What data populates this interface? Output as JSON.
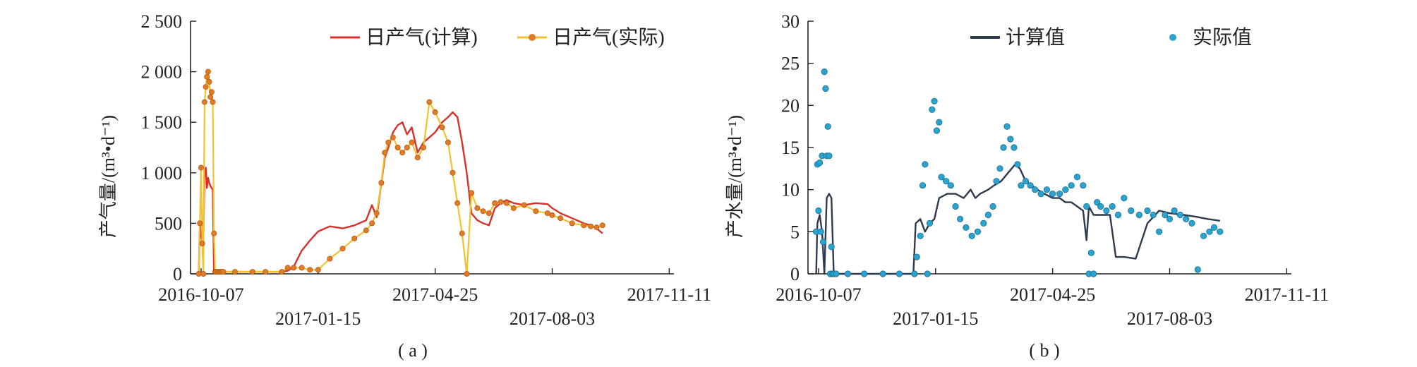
{
  "chart_data": [
    {
      "type": "line",
      "panel_label": "( a )",
      "ylabel": "产气量/(m³•d⁻¹)",
      "xlabel": "",
      "ylim": [
        0,
        2500
      ],
      "yticks": [
        0,
        500,
        1000,
        1500,
        2000,
        2500
      ],
      "ytick_labels": [
        "0",
        "500",
        "1 000",
        "1 500",
        "2 000",
        "2 500"
      ],
      "xlim": [
        "2016-09-28",
        "2017-11-15"
      ],
      "xticks": [
        "2016-10-07",
        "2017-01-15",
        "2017-04-25",
        "2017-08-03",
        "2017-11-11"
      ],
      "grid": false,
      "legend_position": "top-right",
      "colors": {
        "calc": "#d9302a",
        "actual_line": "#f2c12e",
        "actual_marker": "#e07b27"
      },
      "series": [
        {
          "name": "日产气(计算)",
          "style": "line",
          "x": [
            "2016-10-05",
            "2016-10-06",
            "2016-10-07",
            "2016-10-08",
            "2016-10-09",
            "2016-10-10",
            "2016-10-11",
            "2016-10-12",
            "2016-10-13",
            "2016-10-14",
            "2016-10-15",
            "2016-10-16",
            "2016-10-17",
            "2016-10-18",
            "2016-10-19",
            "2016-10-20",
            "2016-10-21",
            "2016-10-22",
            "2016-10-23",
            "2016-10-24",
            "2016-10-25",
            "2016-10-26",
            "2016-11-05",
            "2016-11-20",
            "2016-12-01",
            "2016-12-15",
            "2016-12-20",
            "2016-12-25",
            "2017-01-01",
            "2017-01-08",
            "2017-01-15",
            "2017-01-25",
            "2017-02-05",
            "2017-02-15",
            "2017-02-25",
            "2017-03-02",
            "2017-03-06",
            "2017-03-10",
            "2017-03-13",
            "2017-03-16",
            "2017-03-20",
            "2017-03-24",
            "2017-03-28",
            "2017-04-01",
            "2017-04-05",
            "2017-04-10",
            "2017-04-15",
            "2017-04-20",
            "2017-04-25",
            "2017-05-01",
            "2017-05-06",
            "2017-05-10",
            "2017-05-14",
            "2017-05-18",
            "2017-05-22",
            "2017-05-26",
            "2017-05-31",
            "2017-06-05",
            "2017-06-10",
            "2017-06-15",
            "2017-06-20",
            "2017-06-25",
            "2017-07-01",
            "2017-07-10",
            "2017-07-20",
            "2017-07-30",
            "2017-08-03",
            "2017-08-10",
            "2017-08-20",
            "2017-08-30",
            "2017-09-05",
            "2017-09-10",
            "2017-09-15"
          ],
          "values": [
            0,
            500,
            380,
            300,
            360,
            1000,
            1050,
            850,
            950,
            900,
            870,
            850,
            830,
            20,
            20,
            20,
            20,
            20,
            20,
            20,
            20,
            20,
            20,
            20,
            20,
            20,
            30,
            70,
            230,
            330,
            420,
            470,
            450,
            480,
            530,
            680,
            560,
            900,
            1150,
            1250,
            1400,
            1470,
            1500,
            1380,
            1450,
            1200,
            1300,
            1350,
            1400,
            1500,
            1550,
            1600,
            1550,
            1300,
            1000,
            600,
            530,
            500,
            480,
            650,
            700,
            730,
            700,
            680,
            700,
            690,
            650,
            600,
            550,
            500,
            480,
            450,
            400
          ]
        },
        {
          "name": "日产气(实际)",
          "style": "line-markers",
          "x": [
            "2016-10-05",
            "2016-10-06",
            "2016-10-07",
            "2016-10-08",
            "2016-10-09",
            "2016-10-10",
            "2016-10-11",
            "2016-10-12",
            "2016-10-13",
            "2016-10-14",
            "2016-10-15",
            "2016-10-16",
            "2016-10-17",
            "2016-10-18",
            "2016-10-19",
            "2016-10-20",
            "2016-10-21",
            "2016-10-22",
            "2016-10-23",
            "2016-10-24",
            "2016-10-25",
            "2016-10-26",
            "2016-11-05",
            "2016-11-20",
            "2016-12-01",
            "2016-12-15",
            "2016-12-20",
            "2016-12-25",
            "2017-01-01",
            "2017-01-08",
            "2017-01-15",
            "2017-01-25",
            "2017-02-05",
            "2017-02-15",
            "2017-02-25",
            "2017-03-02",
            "2017-03-06",
            "2017-03-10",
            "2017-03-13",
            "2017-03-16",
            "2017-03-20",
            "2017-03-24",
            "2017-03-28",
            "2017-04-01",
            "2017-04-05",
            "2017-04-10",
            "2017-04-15",
            "2017-04-20",
            "2017-04-25",
            "2017-05-01",
            "2017-05-06",
            "2017-05-10",
            "2017-05-14",
            "2017-05-18",
            "2017-05-22",
            "2017-05-26",
            "2017-05-31",
            "2017-06-05",
            "2017-06-10",
            "2017-06-15",
            "2017-06-20",
            "2017-06-25",
            "2017-07-01",
            "2017-07-10",
            "2017-07-20",
            "2017-07-30",
            "2017-08-03",
            "2017-08-10",
            "2017-08-20",
            "2017-08-30",
            "2017-09-05",
            "2017-09-10",
            "2017-09-15"
          ],
          "values": [
            0,
            500,
            1050,
            300,
            0,
            1700,
            1850,
            1950,
            2000,
            1900,
            1750,
            1800,
            1700,
            400,
            20,
            20,
            20,
            20,
            20,
            20,
            20,
            20,
            20,
            20,
            20,
            20,
            60,
            60,
            60,
            40,
            40,
            150,
            250,
            350,
            430,
            500,
            600,
            900,
            1200,
            1300,
            1350,
            1250,
            1200,
            1250,
            1300,
            1150,
            1250,
            1700,
            1600,
            1450,
            1300,
            1000,
            700,
            400,
            0,
            800,
            650,
            620,
            600,
            700,
            710,
            700,
            650,
            680,
            620,
            600,
            580,
            550,
            500,
            480,
            470,
            460,
            480
          ]
        }
      ]
    },
    {
      "type": "line",
      "panel_label": "( b )",
      "ylabel": "产水量/(m³•d⁻¹)",
      "xlabel": "",
      "ylim": [
        0,
        30
      ],
      "yticks": [
        0,
        5,
        10,
        15,
        20,
        25,
        30
      ],
      "ytick_labels": [
        "0",
        "5",
        "10",
        "15",
        "20",
        "25",
        "30"
      ],
      "xlim": [
        "2016-09-28",
        "2017-11-15"
      ],
      "xticks": [
        "2016-10-07",
        "2017-01-15",
        "2017-04-25",
        "2017-08-03",
        "2017-11-11"
      ],
      "grid": false,
      "legend_position": "top-center",
      "colors": {
        "calc": "#2e3a4e",
        "actual": "#2aa3cf"
      },
      "series": [
        {
          "name": "计算值",
          "style": "line",
          "x": [
            "2016-10-05",
            "2016-10-06",
            "2016-10-08",
            "2016-10-10",
            "2016-10-12",
            "2016-10-14",
            "2016-10-16",
            "2016-10-18",
            "2016-10-20",
            "2016-10-22",
            "2016-10-25",
            "2016-11-01",
            "2016-11-10",
            "2016-11-20",
            "2016-12-01",
            "2016-12-10",
            "2016-12-20",
            "2016-12-27",
            "2016-12-29",
            "2017-01-02",
            "2017-01-06",
            "2017-01-10",
            "2017-01-14",
            "2017-01-18",
            "2017-01-25",
            "2017-02-01",
            "2017-02-08",
            "2017-02-14",
            "2017-02-18",
            "2017-02-22",
            "2017-03-01",
            "2017-03-06",
            "2017-03-12",
            "2017-03-18",
            "2017-03-24",
            "2017-03-28",
            "2017-04-02",
            "2017-04-07",
            "2017-04-12",
            "2017-04-18",
            "2017-04-25",
            "2017-05-01",
            "2017-05-06",
            "2017-05-11",
            "2017-05-16",
            "2017-05-21",
            "2017-05-24",
            "2017-05-26",
            "2017-05-30",
            "2017-06-03",
            "2017-06-08",
            "2017-06-13",
            "2017-06-18",
            "2017-06-25",
            "2017-07-05",
            "2017-07-15",
            "2017-07-25",
            "2017-08-03",
            "2017-08-15",
            "2017-08-25",
            "2017-09-05",
            "2017-09-15"
          ],
          "values": [
            0,
            6,
            7,
            5,
            0,
            9,
            9.5,
            9,
            0,
            0,
            0,
            0,
            0,
            0,
            0,
            0,
            0,
            0,
            6,
            6.5,
            5,
            6,
            6.5,
            9,
            9.5,
            9.5,
            9,
            10,
            9,
            9.5,
            10,
            10.5,
            11,
            12,
            13,
            12.5,
            11,
            10.5,
            10,
            9.5,
            9,
            9,
            8.5,
            8.5,
            8,
            7.5,
            4,
            8,
            7,
            7,
            7,
            7,
            2,
            2,
            1.8,
            6,
            7.5,
            7.2,
            7,
            6.8,
            6.5,
            6.3
          ]
        },
        {
          "name": "实际值",
          "style": "markers",
          "x": [
            "2016-10-05",
            "2016-10-06",
            "2016-10-07",
            "2016-10-08",
            "2016-10-09",
            "2016-10-10",
            "2016-10-11",
            "2016-10-12",
            "2016-10-13",
            "2016-10-14",
            "2016-10-15",
            "2016-10-16",
            "2016-10-17",
            "2016-10-18",
            "2016-10-19",
            "2016-10-20",
            "2016-10-22",
            "2016-11-01",
            "2016-11-15",
            "2016-12-01",
            "2016-12-15",
            "2016-12-28",
            "2016-12-30",
            "2017-01-02",
            "2017-01-04",
            "2017-01-06",
            "2017-01-08",
            "2017-01-10",
            "2017-01-12",
            "2017-01-14",
            "2017-01-16",
            "2017-01-18",
            "2017-01-20",
            "2017-01-24",
            "2017-01-28",
            "2017-02-01",
            "2017-02-05",
            "2017-02-10",
            "2017-02-15",
            "2017-02-20",
            "2017-02-25",
            "2017-03-01",
            "2017-03-05",
            "2017-03-08",
            "2017-03-11",
            "2017-03-14",
            "2017-03-17",
            "2017-03-20",
            "2017-03-23",
            "2017-03-26",
            "2017-03-29",
            "2017-04-02",
            "2017-04-06",
            "2017-04-10",
            "2017-04-15",
            "2017-04-20",
            "2017-04-25",
            "2017-05-01",
            "2017-05-06",
            "2017-05-11",
            "2017-05-16",
            "2017-05-21",
            "2017-05-24",
            "2017-05-26",
            "2017-05-28",
            "2017-05-30",
            "2017-06-02",
            "2017-06-05",
            "2017-06-10",
            "2017-06-15",
            "2017-06-20",
            "2017-06-25",
            "2017-07-01",
            "2017-07-08",
            "2017-07-15",
            "2017-07-20",
            "2017-07-25",
            "2017-07-30",
            "2017-08-03",
            "2017-08-07",
            "2017-08-12",
            "2017-08-17",
            "2017-08-22",
            "2017-08-27",
            "2017-09-01",
            "2017-09-06",
            "2017-09-10",
            "2017-09-15"
          ],
          "values": [
            5,
            13,
            7.5,
            13.2,
            5,
            14,
            3.8,
            24,
            22,
            14,
            17.5,
            14,
            0,
            3.2,
            0,
            0,
            0,
            0,
            0,
            0,
            0,
            0,
            2,
            4.5,
            10.5,
            13,
            0,
            6,
            19.5,
            20.5,
            17,
            18,
            11.5,
            11,
            10.5,
            8,
            6.5,
            5.5,
            4.5,
            5,
            6,
            7,
            8,
            11,
            12.5,
            15,
            17.5,
            16,
            15,
            13,
            10.5,
            11,
            10.5,
            10,
            9.5,
            10,
            9.5,
            9.5,
            10,
            10.5,
            11.5,
            10.5,
            8,
            0,
            2.5,
            0,
            8.5,
            8,
            7.5,
            8,
            7,
            9,
            7.5,
            7,
            7.5,
            7,
            5,
            7,
            6.5,
            7.5,
            7,
            6.5,
            6,
            0.5,
            4.5,
            5,
            5.5,
            5
          ]
        }
      ]
    }
  ]
}
